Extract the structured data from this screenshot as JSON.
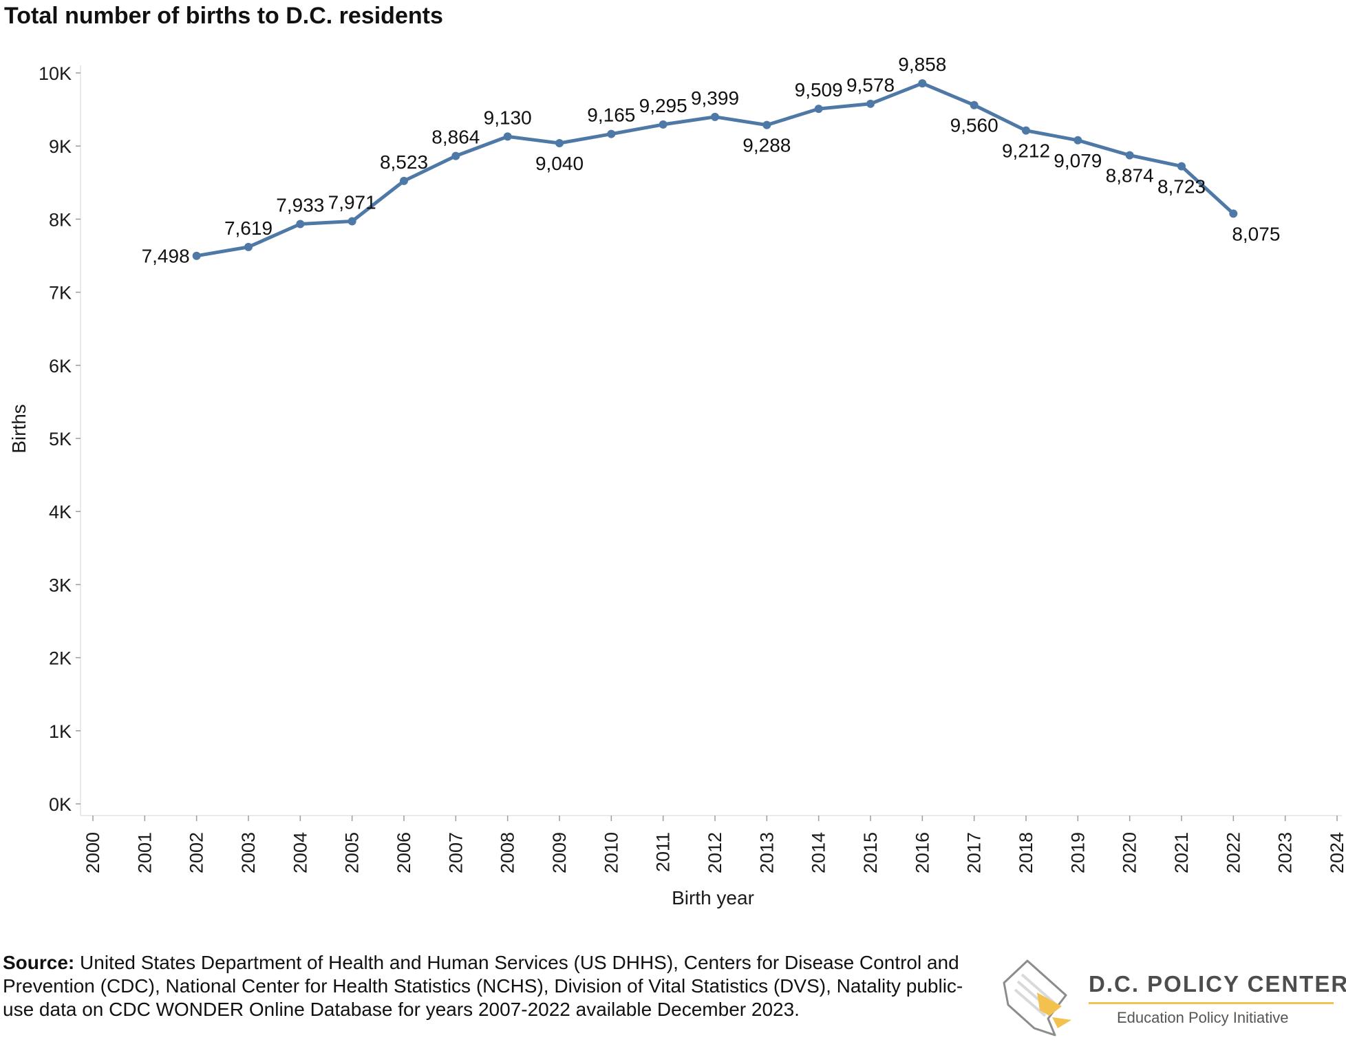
{
  "title": "Total number of births to D.C. residents",
  "source": {
    "label": "Source:",
    "text": " United States Department of Health and Human Services (US DHHS), Centers for Disease Control and Prevention (CDC), National Center for Health Statistics (NCHS), Division of Vital Statistics (DVS), Natality public-use data on CDC WONDER Online Database for years 2007-2022 available December 2023."
  },
  "logo": {
    "org": "D.C. POLICY CENTER",
    "subtitle": "Education Policy Initiative",
    "colors": {
      "accent": "#f2c14e",
      "text": "#4d4d4d"
    }
  },
  "chart_data": {
    "type": "line",
    "title": "Total number of births to D.C. residents",
    "xlabel": "Birth year",
    "ylabel": "Births",
    "x_ticks": [
      "2000",
      "2001",
      "2002",
      "2003",
      "2004",
      "2005",
      "2006",
      "2007",
      "2008",
      "2009",
      "2010",
      "2011",
      "2012",
      "2013",
      "2014",
      "2015",
      "2016",
      "2017",
      "2018",
      "2019",
      "2020",
      "2021",
      "2022",
      "2023",
      "2024"
    ],
    "y_ticks": [
      "0K",
      "1K",
      "2K",
      "3K",
      "4K",
      "5K",
      "6K",
      "7K",
      "8K",
      "9K",
      "10K"
    ],
    "xlim": [
      2000,
      2024
    ],
    "ylim": [
      0,
      10000
    ],
    "grid": false,
    "color": "#4e79a7",
    "series": [
      {
        "x": [
          2002,
          2003,
          2004,
          2005,
          2006,
          2007,
          2008,
          2009,
          2010,
          2011,
          2012,
          2013,
          2014,
          2015,
          2016,
          2017,
          2018,
          2019,
          2020,
          2021,
          2022
        ],
        "values": [
          7498,
          7619,
          7933,
          7971,
          8523,
          8864,
          9130,
          9040,
          9165,
          9295,
          9399,
          9288,
          9509,
          9578,
          9858,
          9560,
          9212,
          9079,
          8874,
          8723,
          8075
        ],
        "labels": [
          "7,498",
          "7,619",
          "7,933",
          "7,971",
          "8,523",
          "8,864",
          "9,130",
          "9,040",
          "9,165",
          "9,295",
          "9,399",
          "9,288",
          "9,509",
          "9,578",
          "9,858",
          "9,560",
          "9,212",
          "9,079",
          "8,874",
          "8,723",
          "8,075"
        ]
      }
    ]
  }
}
